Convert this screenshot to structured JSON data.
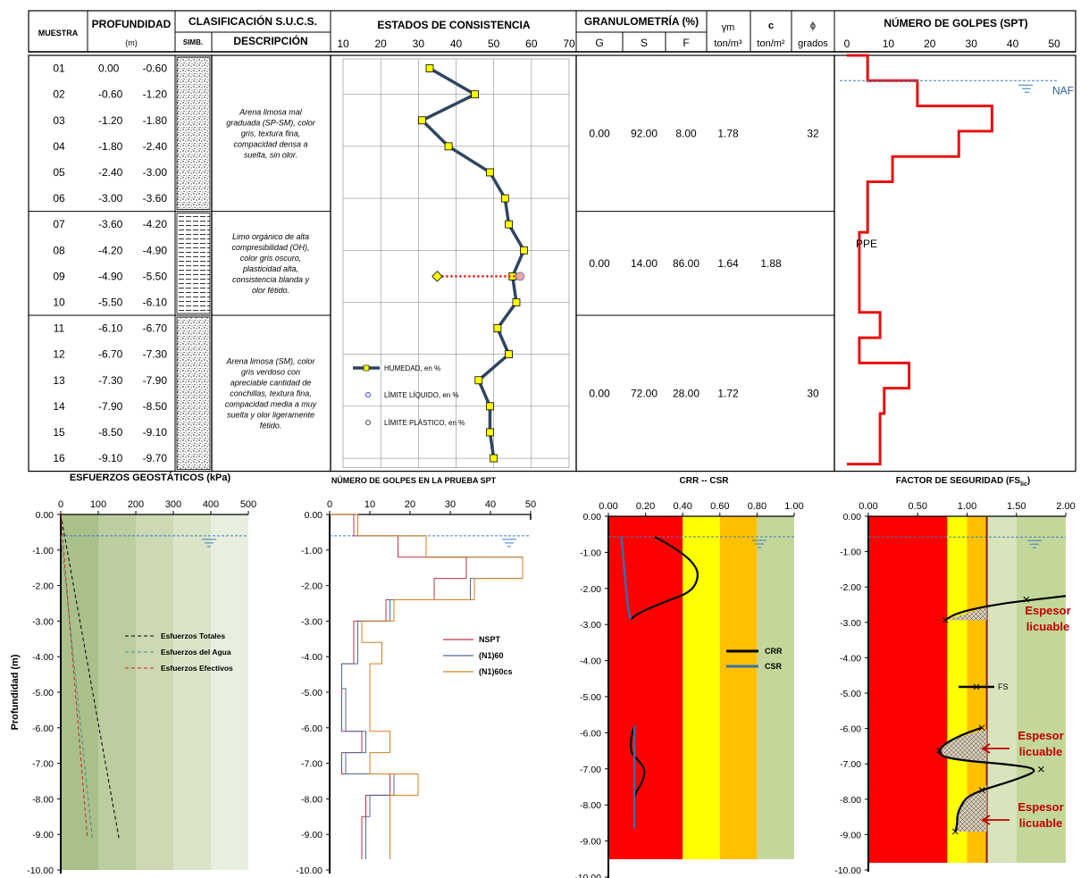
{
  "header": {
    "muestra": "MUESTRA",
    "profundidad": "PROFUNDIDAD",
    "profundidad_unit": "(m)",
    "clasificacion": "CLASIFICACIÓN S.U.C.S.",
    "simb": "SIMB.",
    "descripcion": "DESCRIPCIÓN",
    "estados": "ESTADOS DE CONSISTENCIA",
    "estados_ticks": [
      "10",
      "20",
      "30",
      "40",
      "50",
      "60",
      "70"
    ],
    "granulometria": "GRANULOMETRÍA (%)",
    "g": "G",
    "s": "S",
    "f": "F",
    "gamma": "γm",
    "gamma_unit": "ton/m³",
    "c": "c",
    "c_unit": "ton/m²",
    "phi": "ϕ",
    "phi_unit": "grados",
    "spt_title": "NÚMERO DE GOLPES (SPT)",
    "spt_ticks": [
      "0",
      "10",
      "20",
      "30",
      "40",
      "50"
    ]
  },
  "samples": [
    {
      "id": "01",
      "from": "0.00",
      "to": "-0.60"
    },
    {
      "id": "02",
      "from": "-0.60",
      "to": "-1.20"
    },
    {
      "id": "03",
      "from": "-1.20",
      "to": "-1.80"
    },
    {
      "id": "04",
      "from": "-1.80",
      "to": "-2.40"
    },
    {
      "id": "05",
      "from": "-2.40",
      "to": "-3.00"
    },
    {
      "id": "06",
      "from": "-3.00",
      "to": "-3.60"
    },
    {
      "id": "07",
      "from": "-3.60",
      "to": "-4.20"
    },
    {
      "id": "08",
      "from": "-4.20",
      "to": "-4.90"
    },
    {
      "id": "09",
      "from": "-4.90",
      "to": "-5.50"
    },
    {
      "id": "10",
      "from": "-5.50",
      "to": "-6.10"
    },
    {
      "id": "11",
      "from": "-6.10",
      "to": "-6.70"
    },
    {
      "id": "12",
      "from": "-6.70",
      "to": "-7.30"
    },
    {
      "id": "13",
      "from": "-7.30",
      "to": "-7.90"
    },
    {
      "id": "14",
      "from": "-7.90",
      "to": "-8.50"
    },
    {
      "id": "15",
      "from": "-8.50",
      "to": "-9.10"
    },
    {
      "id": "16",
      "from": "-9.10",
      "to": "-9.70"
    }
  ],
  "strata": [
    {
      "rows": [
        0,
        6
      ],
      "pattern": "sand",
      "desc": [
        "Arena limosa mal",
        "graduada (SP-SM), color",
        "gris, textura fina,",
        "compacidad densa a",
        "suelta, sin olor."
      ],
      "G": "0.00",
      "S": "92.00",
      "F": "8.00",
      "gamma": "1.78",
      "c": "",
      "phi": "32"
    },
    {
      "rows": [
        6,
        10
      ],
      "pattern": "silt",
      "desc": [
        "Limo orgánico de alta",
        "compresibilidad (OH),",
        "color gris oscuro,",
        "plasticidad alta,",
        "consistencia blanda y",
        "olor fétido."
      ],
      "G": "0.00",
      "S": "14.00",
      "F": "86.00",
      "gamma": "1.64",
      "c": "1.88",
      "phi": ""
    },
    {
      "rows": [
        10,
        16
      ],
      "pattern": "sand",
      "desc": [
        "Arena limosa (SM), color",
        "gris verdoso con",
        "apreciable cantidad de",
        "conchillas, textura fina,",
        "compacidad media a muy",
        "suelta y olor ligeramente",
        "fétido."
      ],
      "G": "0.00",
      "S": "72.00",
      "F": "28.00",
      "gamma": "1.72",
      "c": "",
      "phi": "30"
    }
  ],
  "consistency": {
    "humedad": [
      33,
      45,
      31,
      38,
      49,
      53,
      54,
      58,
      55,
      56,
      51,
      54,
      46,
      49,
      49,
      50
    ],
    "ll": {
      "row": 8,
      "value": 57
    },
    "lp": {
      "row": 8,
      "value": 35
    },
    "legend": {
      "humedad": "HUMEDAD, en %",
      "ll": "LÍMITE LÍQUIDO, en %",
      "lp": "LÍMITE PLÁSTICO, en %"
    }
  },
  "spt_log": {
    "depths": [
      0,
      0.6,
      0.6,
      1.2,
      1.2,
      1.8,
      1.8,
      2.4,
      2.4,
      3.0,
      3.0,
      3.6,
      3.6,
      4.2,
      4.2,
      4.9,
      4.9,
      5.5,
      5.5,
      6.1,
      6.1,
      6.7,
      6.7,
      7.3,
      7.3,
      7.9,
      7.9,
      8.5,
      8.5,
      9.1,
      9.1,
      9.7
    ],
    "values": [
      5,
      5,
      17,
      17,
      35,
      35,
      27,
      27,
      11,
      11,
      5,
      5,
      5,
      5,
      3,
      3,
      3,
      3,
      3,
      3,
      8,
      8,
      3,
      3,
      15,
      15,
      9,
      9,
      8,
      8,
      8,
      8
    ],
    "naf": "NAF",
    "ppe": "PPE"
  },
  "chart_data": [
    {
      "type": "line",
      "title": "ESFUERZOS  GEOSTÁTICOS  (kPa)",
      "ylabel": "Profundidad (m)",
      "xlim": [
        0,
        500
      ],
      "ylim": [
        -10,
        0
      ],
      "xticks": [
        "0",
        "100",
        "200",
        "300",
        "400",
        "500"
      ],
      "yticks": [
        "0.00",
        "-1.00",
        "-2.00",
        "-3.00",
        "-4.00",
        "-5.00",
        "-6.00",
        "-7.00",
        "-8.00",
        "-9.00",
        "-10.00"
      ],
      "series": [
        {
          "name": "Esfuerzos Totales",
          "color": "#000000",
          "x": [
            0,
            155
          ],
          "y": [
            0,
            -9.1
          ]
        },
        {
          "name": "Esfuerzos del Agua",
          "color": "#4a8a8a",
          "x": [
            0,
            84
          ],
          "y": [
            -0.6,
            -9.1
          ]
        },
        {
          "name": "Esfuerzos Efectivos",
          "color": "#d02020",
          "x": [
            0,
            71
          ],
          "y": [
            0,
            -9.1
          ]
        }
      ]
    },
    {
      "type": "line",
      "title": "NÚMERO DE GOLPES EN LA PRUEBA SPT",
      "xlim": [
        0,
        50
      ],
      "ylim": [
        -10,
        0
      ],
      "xticks": [
        "0",
        "10",
        "20",
        "30",
        "40",
        "50"
      ],
      "yticks": [
        "0.00",
        "-1.00",
        "-2.00",
        "-3.00",
        "-4.00",
        "-5.00",
        "-6.00",
        "-7.00",
        "-8.00",
        "-9.00",
        "-10.00"
      ],
      "depths": [
        0,
        0.6,
        0.6,
        1.2,
        1.2,
        1.8,
        1.8,
        2.4,
        2.4,
        3.0,
        3.0,
        3.6,
        3.6,
        4.2,
        4.2,
        4.9,
        4.9,
        5.5,
        5.5,
        6.1,
        6.1,
        6.7,
        6.7,
        7.3,
        7.3,
        7.9,
        7.9,
        8.5,
        8.5,
        9.1,
        9.1,
        9.7
      ],
      "series": [
        {
          "name": "NSPT",
          "color": "#c0304a",
          "values": [
            6,
            6,
            17,
            17,
            34,
            34,
            26,
            26,
            14,
            14,
            6,
            6,
            6,
            6,
            3,
            3,
            3,
            3,
            3,
            3,
            8,
            8,
            3,
            3,
            15,
            15,
            9,
            9,
            8,
            8,
            8,
            8
          ]
        },
        {
          "name": "(N1)60",
          "color": "#4a6a9a",
          "values": [
            7,
            7,
            24,
            24,
            48,
            48,
            35,
            35,
            15,
            15,
            7,
            7,
            7,
            7,
            3,
            3,
            4,
            4,
            4,
            4,
            9,
            9,
            4,
            4,
            16,
            16,
            10,
            10,
            9,
            9,
            9,
            9
          ]
        },
        {
          "name": "(N1)60cs",
          "color": "#d08020",
          "values": [
            7,
            7,
            24,
            24,
            48,
            48,
            36,
            36,
            16,
            16,
            8,
            8,
            13,
            13,
            10,
            10,
            10,
            10,
            10,
            10,
            15,
            15,
            10,
            10,
            22,
            22,
            15,
            15,
            15,
            15,
            15,
            15
          ]
        }
      ]
    },
    {
      "type": "line",
      "title": "CRR -- CSR",
      "xlim": [
        0,
        1
      ],
      "ylim": [
        -10,
        0
      ],
      "xticks": [
        "0.00",
        "0.20",
        "0.40",
        "0.60",
        "0.80",
        "1.00"
      ],
      "yticks": [
        "0.00",
        "-1.00",
        "-2.00",
        "-3.00",
        "-4.00",
        "-5.00",
        "-6.00",
        "-7.00",
        "-8.00",
        "-9.00",
        "-10.00"
      ],
      "zones": [
        {
          "to": 0.4,
          "color": "#ff0000"
        },
        {
          "to": 0.6,
          "color": "#ffff00"
        },
        {
          "to": 0.8,
          "color": "#ffc000"
        },
        {
          "to": 1.0,
          "color": "#c4d79b"
        }
      ],
      "series": [
        {
          "name": "CRR",
          "color": "#000000",
          "x": [
            0.25,
            0.35,
            0.45,
            0.49,
            0.45,
            0.3,
            0.17,
            0.12
          ],
          "y": [
            -0.6,
            -0.9,
            -1.3,
            -1.7,
            -2.2,
            -2.5,
            -2.8,
            -3.0
          ]
        },
        {
          "name": "CSR",
          "color": "#3070b0",
          "x": [
            0.07,
            0.08,
            0.09,
            0.1,
            0.11,
            0.12
          ],
          "y": [
            -0.6,
            -1.2,
            -1.8,
            -2.4,
            -2.8,
            -3.0
          ]
        },
        {
          "name": "CRR",
          "color": "#000000",
          "x": [
            0.14,
            0.12,
            0.12,
            0.16,
            0.2,
            0.18,
            0.14,
            0.14,
            0.14
          ],
          "y": [
            -6.1,
            -6.5,
            -6.9,
            -7.1,
            -7.4,
            -7.8,
            -8.1,
            -8.6,
            -9.1
          ]
        },
        {
          "name": "CSR",
          "color": "#3070b0",
          "x": [
            0.14,
            0.14,
            0.14,
            0.14,
            0.14
          ],
          "y": [
            -6.1,
            -6.8,
            -7.4,
            -8.2,
            -9.1
          ]
        }
      ],
      "legend": [
        "CRR",
        "CSR"
      ]
    },
    {
      "type": "line",
      "title": "FACTOR DE SEGURIDAD  (FS",
      "title_sub": "lic",
      "title_end": ")",
      "xlim": [
        0,
        2
      ],
      "ylim": [
        -10,
        0
      ],
      "xticks": [
        "0.00",
        "0.50",
        "1.00",
        "1.50",
        "2.00"
      ],
      "yticks": [
        "0.00",
        "-1.00",
        "-2.00",
        "-3.00",
        "-4.00",
        "-5.00",
        "-6.00",
        "-7.00",
        "-8.00",
        "-9.00",
        "-10.00"
      ],
      "zones": [
        {
          "to": 0.8,
          "color": "#ff0000"
        },
        {
          "to": 1.0,
          "color": "#ffff00"
        },
        {
          "to": 1.2,
          "color": "#ffc000"
        },
        {
          "to": 1.5,
          "color": "#d8e4bc"
        },
        {
          "to": 2.0,
          "color": "#c4d79b"
        }
      ],
      "fs_limit": 1.2,
      "series": [
        {
          "name": "FS",
          "color": "#000000",
          "x": [
            2.0,
            1.7,
            1.4,
            1.1,
            0.9,
            0.8,
            0.78
          ],
          "y": [
            -2.3,
            -2.4,
            -2.5,
            -2.65,
            -2.8,
            -2.95,
            -3.0
          ]
        },
        {
          "name": "FS",
          "color": "#000000",
          "x": [
            1.15,
            0.95,
            0.75,
            0.7,
            0.95,
            1.4,
            1.75,
            1.5,
            1.15,
            1.0,
            0.95,
            0.9,
            0.9,
            0.88
          ],
          "y": [
            -6.1,
            -6.3,
            -6.6,
            -6.9,
            -7.05,
            -7.15,
            -7.3,
            -7.6,
            -7.9,
            -8.1,
            -8.3,
            -8.6,
            -8.9,
            -9.1
          ]
        }
      ],
      "markers": [
        {
          "x": 1.6,
          "y": -2.4
        },
        {
          "x": 0.78,
          "y": -3.0
        },
        {
          "x": 1.15,
          "y": -6.1
        },
        {
          "x": 0.72,
          "y": -6.75
        },
        {
          "x": 1.75,
          "y": -7.3
        },
        {
          "x": 1.15,
          "y": -7.9
        },
        {
          "x": 0.88,
          "y": -9.1
        }
      ],
      "liquefiable": [
        {
          "label_line1": "Espesor",
          "label_line2": "licuable",
          "y": -2.75
        },
        {
          "label_line1": "Espesor",
          "label_line2": "licuable",
          "y": -6.6
        },
        {
          "label_line1": "Espesor",
          "label_line2": "licuable",
          "y": -8.5
        }
      ],
      "legend": [
        "FS"
      ]
    }
  ],
  "legends": {
    "chart1": [
      "Esfuerzos Totales",
      "Esfuerzos del Agua",
      "Esfuerzos Efectivos"
    ],
    "chart2": [
      "NSPT",
      "(N1)60",
      "(N1)60cs"
    ]
  }
}
